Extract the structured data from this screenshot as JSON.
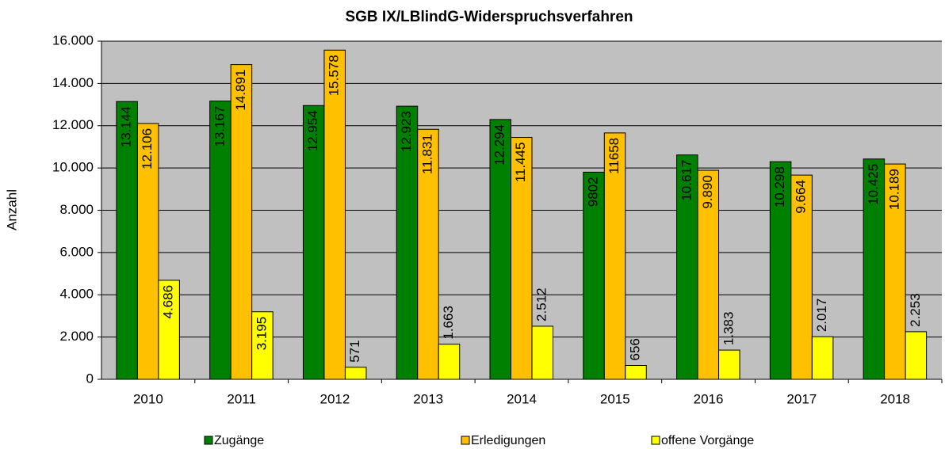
{
  "chart_data": {
    "type": "bar",
    "title": "SGB IX/LBlindG-Widerspruchsverfahren",
    "y_label": "Anzahl",
    "categories": [
      "2010",
      "2011",
      "2012",
      "2013",
      "2014",
      "2015",
      "2016",
      "2017",
      "2018"
    ],
    "series": [
      {
        "name": "Zugänge",
        "color": "#008000",
        "values": [
          13144,
          13167,
          12954,
          12923,
          12294,
          9802,
          10617,
          10298,
          10425
        ],
        "value_labels": [
          "13.144",
          "13.167",
          "12.954",
          "12.923",
          "12.294",
          "9802",
          "10.617",
          "10.298",
          "10.425"
        ]
      },
      {
        "name": "Erledigungen",
        "color": "#ffc000",
        "values": [
          12106,
          14891,
          15578,
          11831,
          11445,
          11658,
          9890,
          9664,
          10189
        ],
        "value_labels": [
          "12.106",
          "14.891",
          "15.578",
          "11.831",
          "11.445",
          "11658",
          "9.890",
          "9.664",
          "10.189"
        ]
      },
      {
        "name": "offene Vorgänge",
        "color": "#ffff00",
        "values": [
          4686,
          3195,
          571,
          1663,
          2512,
          656,
          1383,
          2017,
          2253
        ],
        "value_labels": [
          "4.686",
          "3.195",
          "571",
          "1.663",
          "2.512",
          "656",
          "1.383",
          "2.017",
          "2.253"
        ]
      }
    ],
    "ylim": [
      0,
      16000
    ],
    "yticks": [
      0,
      {
        "value": 2000,
        "label": "2.000"
      },
      {
        "value": 4000,
        "label": "4.000"
      },
      {
        "value": 6000,
        "label": "6.000"
      },
      {
        "value": 8000,
        "label": "8.000"
      },
      {
        "value": 10000,
        "label": "10.000"
      },
      {
        "value": 12000,
        "label": "12.000"
      },
      {
        "value": 14000,
        "label": "14.000"
      },
      {
        "value": 16000,
        "label": "16.000"
      }
    ],
    "grid": true
  }
}
